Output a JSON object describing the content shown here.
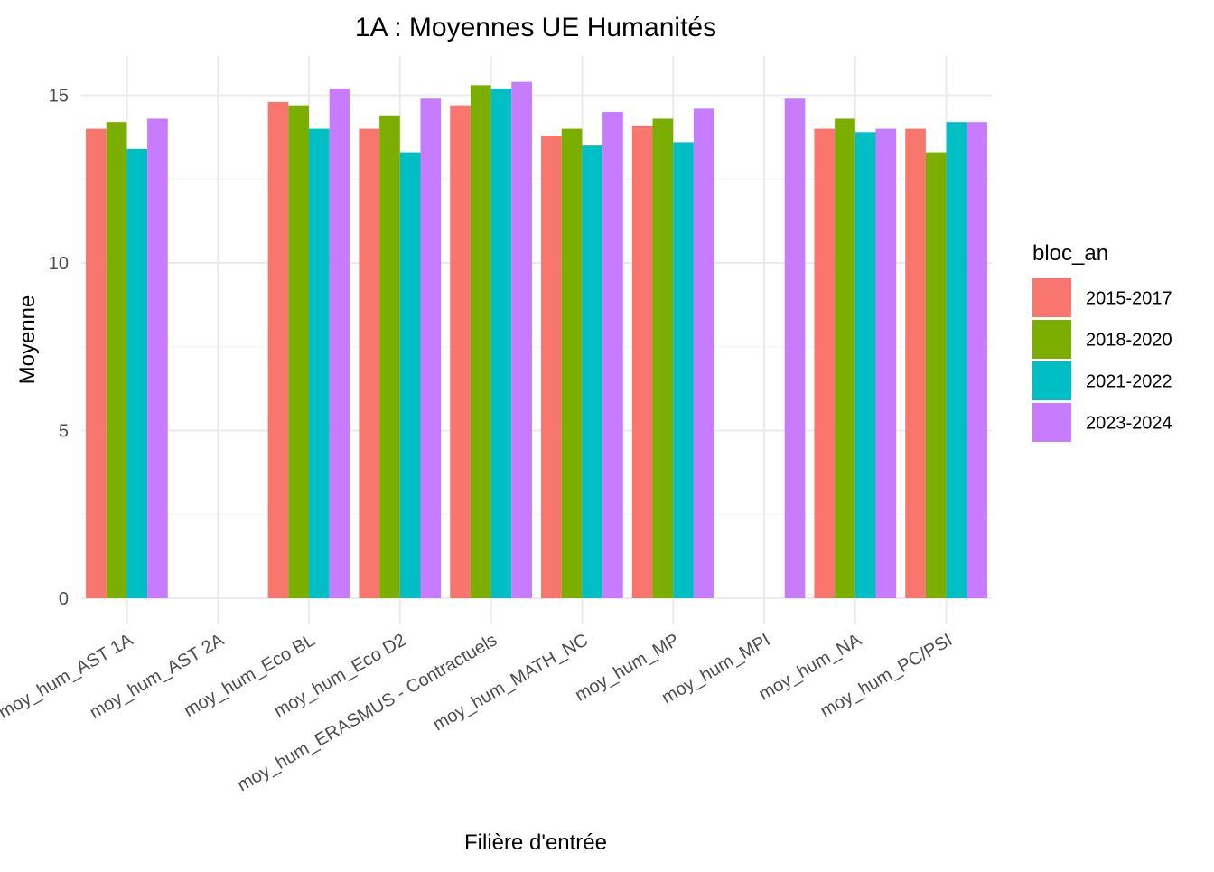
{
  "chart_data": {
    "type": "bar",
    "title": "1A : Moyennes UE Humanités",
    "xlabel": "Filière d'entrée",
    "ylabel": "Moyenne",
    "ylim": [
      0,
      16.2
    ],
    "yticks": [
      0,
      5,
      10,
      15
    ],
    "grid": true,
    "legend": {
      "title": "bloc_an",
      "placement": "right"
    },
    "categories": [
      "moy_hum_AST 1A",
      "moy_hum_AST 2A",
      "moy_hum_Eco BL",
      "moy_hum_Eco D2",
      "moy_hum_ERASMUS - Contractuels",
      "moy_hum_MATH_NC",
      "moy_hum_MP",
      "moy_hum_MPI",
      "moy_hum_NA",
      "moy_hum_PC/PSI"
    ],
    "series": [
      {
        "name": "2015-2017",
        "color": "#F8766D",
        "values": [
          14.0,
          null,
          14.8,
          14.0,
          14.7,
          13.8,
          14.1,
          null,
          14.0,
          14.0
        ]
      },
      {
        "name": "2018-2020",
        "color": "#7CAE00",
        "values": [
          14.2,
          null,
          14.7,
          14.4,
          15.3,
          14.0,
          14.3,
          null,
          14.3,
          13.3
        ]
      },
      {
        "name": "2021-2022",
        "color": "#00BFC4",
        "values": [
          13.4,
          null,
          14.0,
          13.3,
          15.2,
          13.5,
          13.6,
          null,
          13.9,
          14.2
        ]
      },
      {
        "name": "2023-2024",
        "color": "#C77CFF",
        "values": [
          14.3,
          null,
          15.2,
          14.9,
          15.4,
          14.5,
          14.6,
          14.9,
          14.0,
          14.2
        ]
      }
    ]
  }
}
